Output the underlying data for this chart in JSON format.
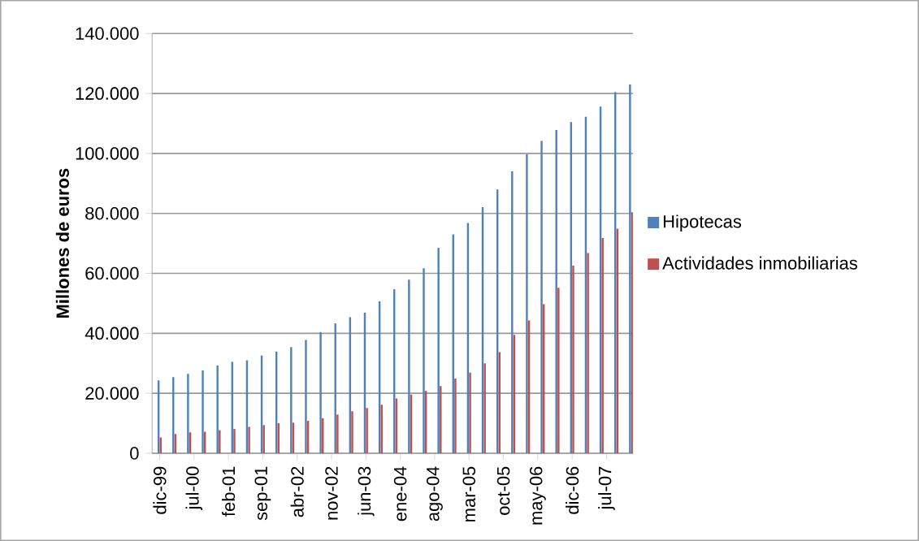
{
  "chart_data": {
    "type": "bar",
    "ylabel": "Millones de euros",
    "x": [
      "1999-12",
      "2000-03",
      "2000-06",
      "2000-09",
      "2000-12",
      "2001-03",
      "2001-06",
      "2001-09",
      "2001-12",
      "2002-03",
      "2002-06",
      "2002-09",
      "2002-12",
      "2003-03",
      "2003-06",
      "2003-09",
      "2003-12",
      "2004-03",
      "2004-06",
      "2004-09",
      "2004-12",
      "2005-03",
      "2005-06",
      "2005-09",
      "2005-12",
      "2006-03",
      "2006-06",
      "2006-09",
      "2006-12",
      "2007-03",
      "2007-06",
      "2007-09",
      "2007-12"
    ],
    "series": [
      {
        "name": "Hipotecas",
        "color": "#4f81bd",
        "values": [
          24300,
          25400,
          26500,
          27600,
          29300,
          30500,
          31000,
          32600,
          33900,
          35400,
          37800,
          40400,
          43300,
          45400,
          46900,
          50700,
          54700,
          57900,
          61700,
          68500,
          73000,
          76800,
          82100,
          88000,
          94000,
          99800,
          104200,
          107800,
          110500,
          112200,
          115600,
          120500,
          123000
        ]
      },
      {
        "name": "Actividades inmobiliarias",
        "color": "#c0504d",
        "values": [
          5300,
          6400,
          7000,
          7200,
          7700,
          8100,
          8800,
          9400,
          10000,
          10200,
          10800,
          11700,
          12900,
          14000,
          15100,
          16200,
          18300,
          19600,
          20800,
          22400,
          24900,
          26900,
          30000,
          33700,
          39500,
          44300,
          49700,
          55200,
          62600,
          66800,
          71800,
          74900,
          80400
        ]
      }
    ],
    "xlim": [
      "1999-10-15",
      "2007-12-12"
    ],
    "xticks": [
      {
        "value": "1999-12",
        "label": "dic-99"
      },
      {
        "value": "2000-07",
        "label": "jul-00"
      },
      {
        "value": "2001-02",
        "label": "feb-01"
      },
      {
        "value": "2001-09",
        "label": "sep-01"
      },
      {
        "value": "2002-04",
        "label": "abr-02"
      },
      {
        "value": "2002-11",
        "label": "nov-02"
      },
      {
        "value": "2003-06",
        "label": "jun-03"
      },
      {
        "value": "2004-01",
        "label": "ene-04"
      },
      {
        "value": "2004-08",
        "label": "ago-04"
      },
      {
        "value": "2005-03",
        "label": "mar-05"
      },
      {
        "value": "2005-10",
        "label": "oct-05"
      },
      {
        "value": "2006-05",
        "label": "may-06"
      },
      {
        "value": "2006-12",
        "label": "dic-06"
      },
      {
        "value": "2007-07",
        "label": "jul-07"
      }
    ],
    "ylim": [
      0,
      140000
    ],
    "yticks": [
      {
        "value": 0,
        "label": "0"
      },
      {
        "value": 20000,
        "label": "20.000"
      },
      {
        "value": 40000,
        "label": "40.000"
      },
      {
        "value": 60000,
        "label": "60.000"
      },
      {
        "value": 80000,
        "label": "80.000"
      },
      {
        "value": 100000,
        "label": "100.000"
      },
      {
        "value": 120000,
        "label": "120.000"
      },
      {
        "value": 140000,
        "label": "140.000"
      }
    ],
    "grid": "y",
    "legend": "right"
  }
}
